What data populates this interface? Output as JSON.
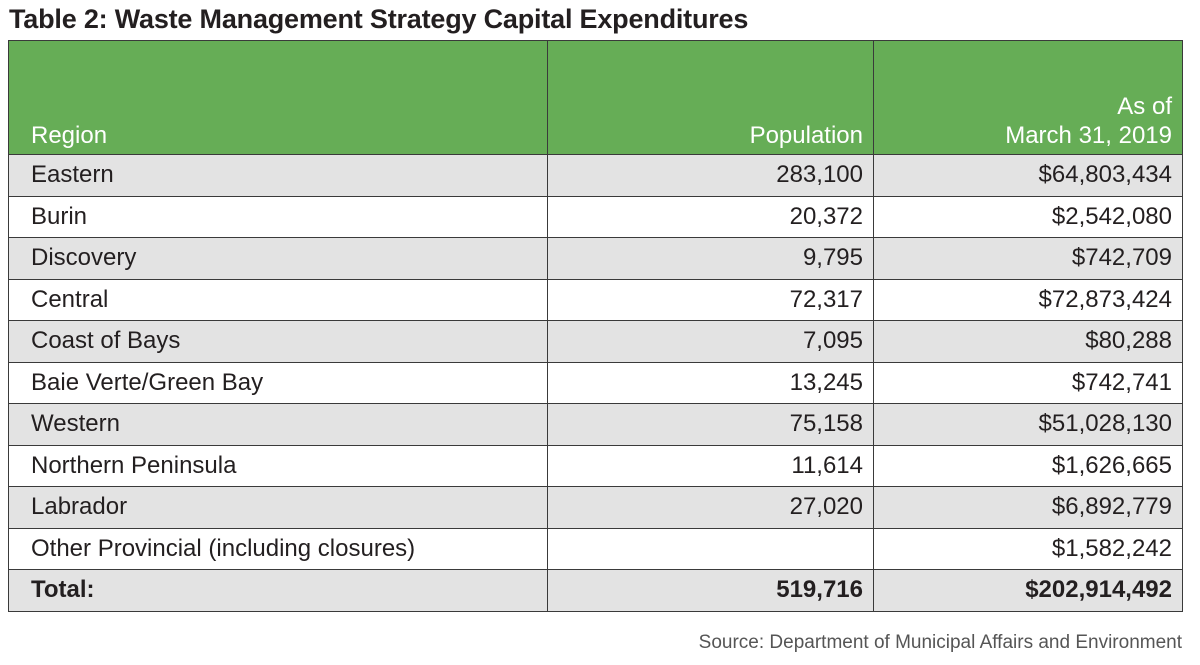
{
  "title": "Table 2: Waste Management Strategy Capital Expenditures",
  "headers": {
    "region": "Region",
    "population": "Population",
    "amount_line1": "As of",
    "amount_line2": "March 31, 2019"
  },
  "rows": [
    {
      "region": "Eastern",
      "population": "283,100",
      "amount": "$64,803,434"
    },
    {
      "region": "Burin",
      "population": "20,372",
      "amount": "$2,542,080"
    },
    {
      "region": "Discovery",
      "population": "9,795",
      "amount": "$742,709"
    },
    {
      "region": "Central",
      "population": "72,317",
      "amount": "$72,873,424"
    },
    {
      "region": "Coast of Bays",
      "population": "7,095",
      "amount": "$80,288"
    },
    {
      "region": "Baie Verte/Green Bay",
      "population": "13,245",
      "amount": "$742,741"
    },
    {
      "region": "Western",
      "population": "75,158",
      "amount": "$51,028,130"
    },
    {
      "region": "Northern Peninsula",
      "population": "11,614",
      "amount": "$1,626,665"
    },
    {
      "region": "Labrador",
      "population": "27,020",
      "amount": "$6,892,779"
    },
    {
      "region": "Other Provincial (including closures)",
      "population": "",
      "amount": "$1,582,242"
    }
  ],
  "total": {
    "label": "Total:",
    "population": "519,716",
    "amount": "$202,914,492"
  },
  "source": "Source: Department of Municipal Affairs and Environment",
  "colors": {
    "header_bg": "#66ad56",
    "stripe_bg": "#e3e3e3",
    "header_text": "#ffffff"
  }
}
